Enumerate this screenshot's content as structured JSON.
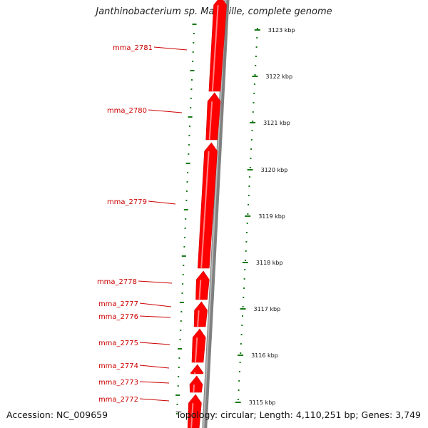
{
  "title": "Janthinobacterium sp. Marseille, complete genome",
  "footer": {
    "accession": "Accession: NC_009659",
    "stats": "Topology: circular; Length: 4,110,251 bp; Genes: 3,749"
  },
  "colors": {
    "gene": "#ff0000",
    "gene_label": "#cc0000",
    "backbone": "#808080",
    "tick": "#1a7a1a",
    "text": "#111111"
  },
  "scale_labels": [
    "3123 kbp",
    "3122 kbp",
    "3121 kbp",
    "3120 kbp",
    "3119 kbp",
    "3118 kbp",
    "3117 kbp",
    "3116 kbp",
    "3115 kbp"
  ],
  "gene_labels": [
    "mma_2781",
    "mma_2780",
    "mma_2779",
    "mma_2778",
    "mma_2777",
    "mma_2776",
    "mma_2775",
    "mma_2774",
    "mma_2773",
    "mma_2772"
  ]
}
